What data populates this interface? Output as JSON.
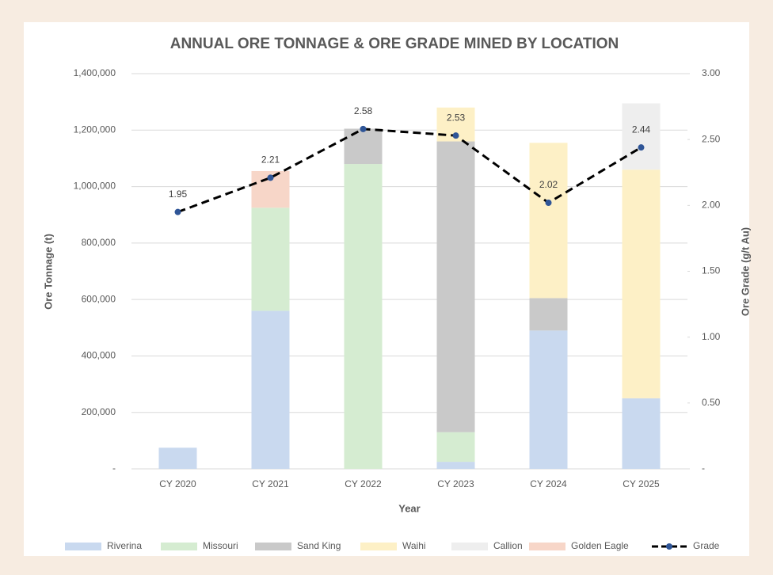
{
  "chart_data": {
    "type": "bar",
    "title": "ANNUAL ORE TONNAGE & ORE GRADE MINED BY LOCATION",
    "x_label": "Year",
    "y_label": "Ore Tonnage  (t)",
    "y2_label": "Ore Grade  (g/t Au)",
    "categories": [
      "CY 2020",
      "CY 2021",
      "CY 2022",
      "CY 2023",
      "CY 2024",
      "CY 2025"
    ],
    "stacked": true,
    "series": [
      {
        "name": "Riverina",
        "color": "#c9d9ef",
        "values": [
          75000,
          560000,
          0,
          25000,
          490000,
          250000
        ]
      },
      {
        "name": "Missouri",
        "color": "#d5ecd1",
        "values": [
          0,
          365000,
          1080000,
          105000,
          0,
          0
        ]
      },
      {
        "name": "Sand King",
        "color": "#c9c9c9",
        "values": [
          0,
          0,
          125000,
          1030000,
          115000,
          0
        ]
      },
      {
        "name": "Waihi",
        "color": "#fdf0c6",
        "values": [
          0,
          0,
          0,
          120000,
          550000,
          810000
        ]
      },
      {
        "name": "Callion",
        "color": "#eeeeee",
        "values": [
          0,
          0,
          0,
          0,
          0,
          235000
        ]
      },
      {
        "name": "Golden Eagle",
        "color": "#f7d6c8",
        "values": [
          0,
          130000,
          0,
          0,
          0,
          0
        ]
      },
      {
        "name": "Grade",
        "type": "line",
        "axis": "y2",
        "color": "#000000",
        "marker_color": "#2f5597",
        "dashed": true,
        "values": [
          1.95,
          2.21,
          2.58,
          2.53,
          2.02,
          2.44
        ]
      }
    ],
    "ylim": [
      0,
      1400000
    ],
    "yticks": [
      {
        "value": 0,
        "label": "-"
      },
      {
        "value": 200000,
        "label": "200,000"
      },
      {
        "value": 400000,
        "label": "400,000"
      },
      {
        "value": 600000,
        "label": "600,000"
      },
      {
        "value": 800000,
        "label": "800,000"
      },
      {
        "value": 1000000,
        "label": "1,000,000"
      },
      {
        "value": 1200000,
        "label": "1,200,000"
      },
      {
        "value": 1400000,
        "label": "1,400,000"
      }
    ],
    "y2lim": [
      0,
      3
    ],
    "y2ticks": [
      {
        "value": 0,
        "label": "-"
      },
      {
        "value": 0.5,
        "label": "0.50"
      },
      {
        "value": 1,
        "label": "1.00"
      },
      {
        "value": 1.5,
        "label": "1.50"
      },
      {
        "value": 2,
        "label": "2.00"
      },
      {
        "value": 2.5,
        "label": "2.50"
      },
      {
        "value": 3,
        "label": "3.00"
      }
    ],
    "grid": true,
    "legend": "bottom"
  }
}
